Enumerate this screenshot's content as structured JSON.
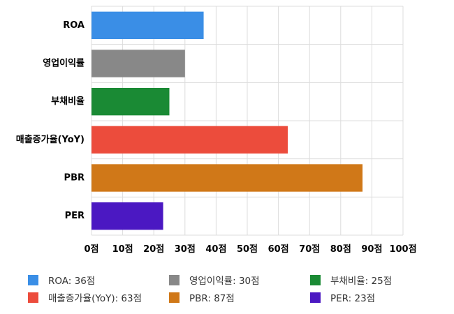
{
  "chart_data": {
    "type": "bar",
    "orientation": "horizontal",
    "categories": [
      "ROA",
      "영업이익률",
      "부채비율",
      "매출증가율(YoY)",
      "PBR",
      "PER"
    ],
    "values": [
      36,
      30,
      25,
      63,
      87,
      23
    ],
    "colors": [
      "#3a8ee6",
      "#888888",
      "#1a8a34",
      "#ec4c3c",
      "#d07818",
      "#4b18c2"
    ],
    "xlim": [
      0,
      100
    ],
    "x_ticks": [
      "0점",
      "10점",
      "20점",
      "30점",
      "40점",
      "50점",
      "60점",
      "70점",
      "80점",
      "90점",
      "100점"
    ],
    "grid": true,
    "legend_position": "bottom",
    "legend": [
      {
        "label": "ROA: 36점",
        "color": "#3a8ee6"
      },
      {
        "label": "영업이익률: 30점",
        "color": "#888888"
      },
      {
        "label": "부채비율: 25점",
        "color": "#1a8a34"
      },
      {
        "label": "매출증가율(YoY): 63점",
        "color": "#ec4c3c"
      },
      {
        "label": "PBR: 87점",
        "color": "#d07818"
      },
      {
        "label": "PER: 23점",
        "color": "#4b18c2"
      }
    ]
  }
}
